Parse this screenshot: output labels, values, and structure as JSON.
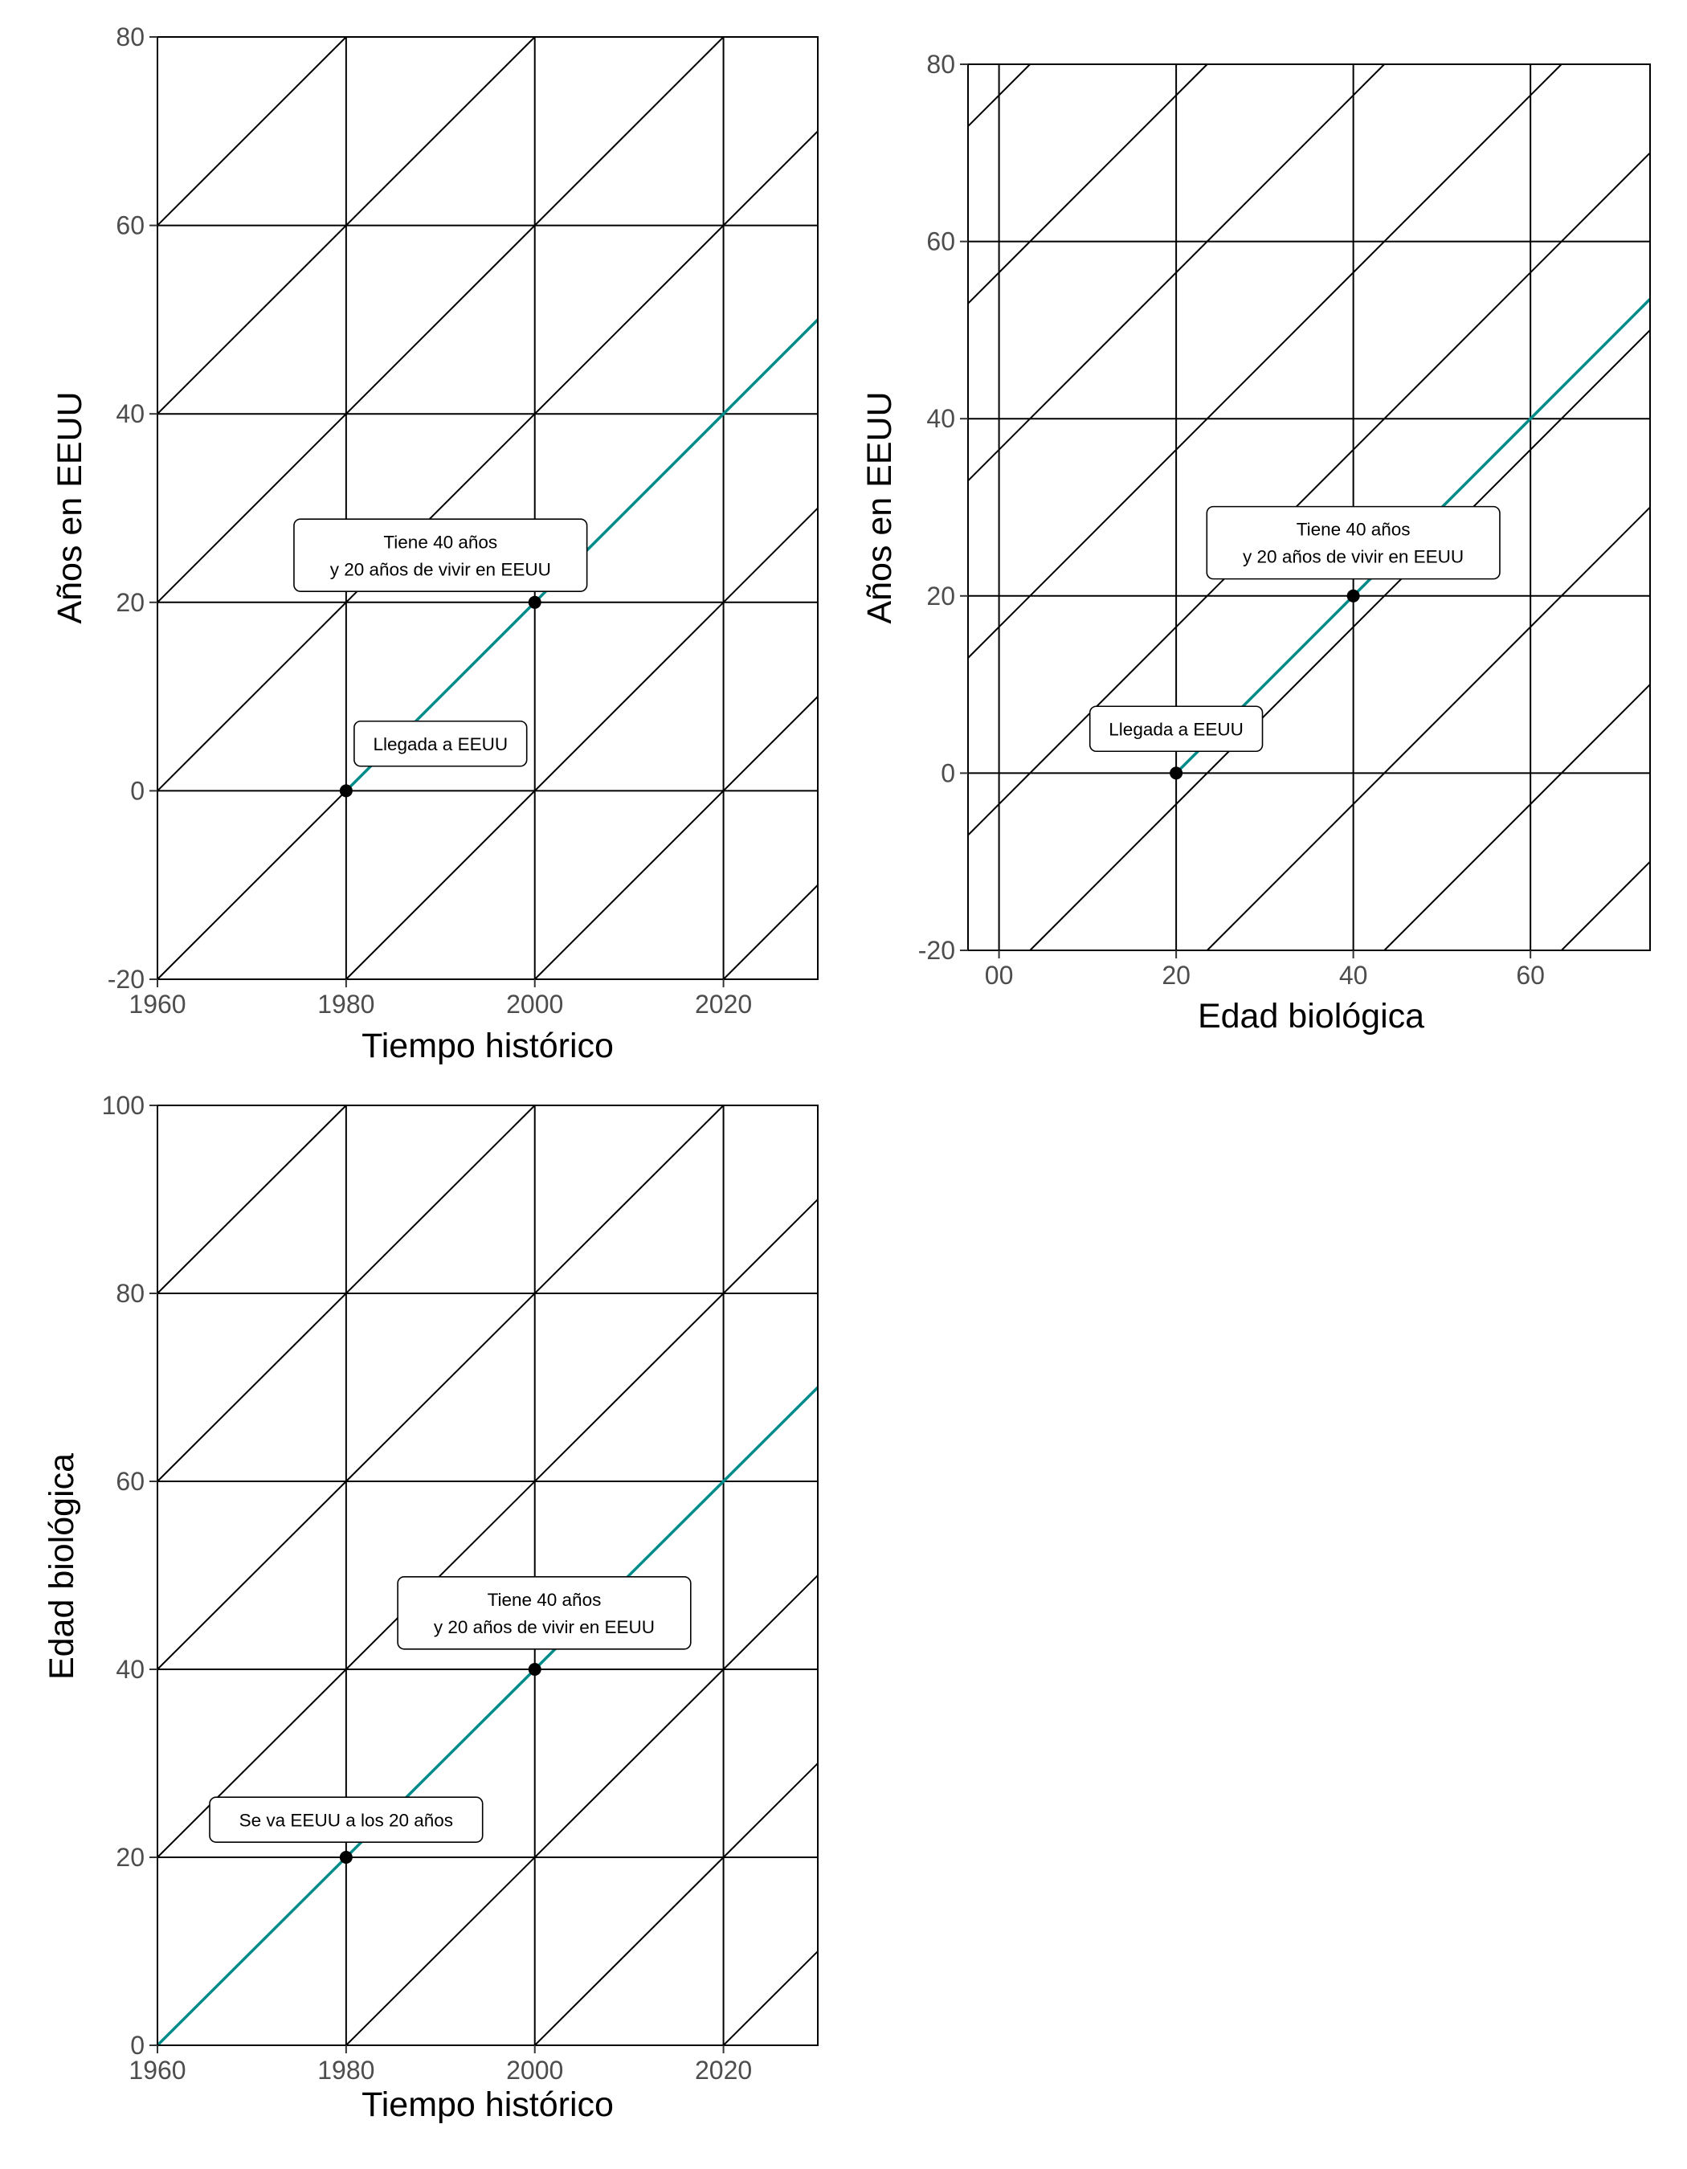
{
  "colors": {
    "grid": "#000000",
    "highlight": "#008b8b",
    "point": "#000000",
    "tick_label": "#4d4d4d",
    "background": "#ffffff"
  },
  "chart_data": [
    {
      "type": "line",
      "title": "",
      "xlabel": "Tiempo histórico",
      "ylabel": "Años en EEUU",
      "xlim": [
        1960,
        2030
      ],
      "ylim": [
        -20,
        80
      ],
      "x_ticks": [
        1960,
        1980,
        2000,
        2020
      ],
      "x_tick_labels": [
        "1960",
        "1980",
        "2000",
        "2020"
      ],
      "y_ticks": [
        -20,
        0,
        20,
        40,
        60,
        80
      ],
      "y_tick_labels": [
        "-20",
        "0",
        "20",
        "40",
        "60",
        "80"
      ],
      "grid": true,
      "diagonal_step": 20,
      "highlight_line": {
        "x": [
          1980,
          2030
        ],
        "y": [
          0,
          50
        ]
      },
      "points": [
        {
          "x": 1980,
          "y": 0
        },
        {
          "x": 2000,
          "y": 20
        }
      ],
      "annotations": [
        {
          "x": 1990,
          "y": 5,
          "lines": [
            "Llegada a EEUU"
          ]
        },
        {
          "x": 1990,
          "y": 25,
          "lines": [
            "Tiene 40 años",
            "y 20 años de vivir en EEUU"
          ]
        }
      ]
    },
    {
      "type": "line",
      "title": "",
      "xlabel": "Edad biológica",
      "ylabel": "Años en EEUU",
      "xlim": [
        -3.5,
        73.5
      ],
      "ylim": [
        -20,
        80
      ],
      "x_ticks": [
        0,
        20,
        40,
        60
      ],
      "x_tick_labels": [
        "00",
        "20",
        "40",
        "60"
      ],
      "y_ticks": [
        -20,
        0,
        20,
        40,
        60,
        80
      ],
      "y_tick_labels": [
        "-20",
        "0",
        "20",
        "40",
        "60",
        "80"
      ],
      "grid": true,
      "diagonal_step": 20,
      "highlight_line": {
        "x": [
          20,
          73.5
        ],
        "y": [
          0,
          53.5
        ]
      },
      "points": [
        {
          "x": 20,
          "y": 0
        },
        {
          "x": 40,
          "y": 20
        }
      ],
      "annotations": [
        {
          "x": 20,
          "y": 5,
          "lines": [
            "Llegada a EEUU"
          ]
        },
        {
          "x": 40,
          "y": 26,
          "lines": [
            "Tiene 40 años",
            "y 20 años de vivir en EEUU"
          ]
        }
      ]
    },
    {
      "type": "line",
      "title": "",
      "xlabel": "Tiempo histórico",
      "ylabel": "Edad biológica",
      "xlim": [
        1960,
        2030
      ],
      "ylim": [
        0,
        100
      ],
      "x_ticks": [
        1960,
        1980,
        2000,
        2020
      ],
      "x_tick_labels": [
        "1960",
        "1980",
        "2000",
        "2020"
      ],
      "y_ticks": [
        0,
        20,
        40,
        60,
        80,
        100
      ],
      "y_tick_labels": [
        "0",
        "20",
        "40",
        "60",
        "80",
        "100"
      ],
      "grid": true,
      "diagonal_step": 20,
      "highlight_line": {
        "x": [
          1960,
          2030
        ],
        "y": [
          0,
          70
        ]
      },
      "points": [
        {
          "x": 1980,
          "y": 20
        },
        {
          "x": 2000,
          "y": 40
        }
      ],
      "annotations": [
        {
          "x": 1980,
          "y": 24,
          "lines": [
            "Se va EEUU a los 20 años"
          ]
        },
        {
          "x": 2001,
          "y": 46,
          "lines": [
            "Tiene 40 años",
            "y 20 años de vivir en EEUU"
          ]
        }
      ]
    }
  ]
}
